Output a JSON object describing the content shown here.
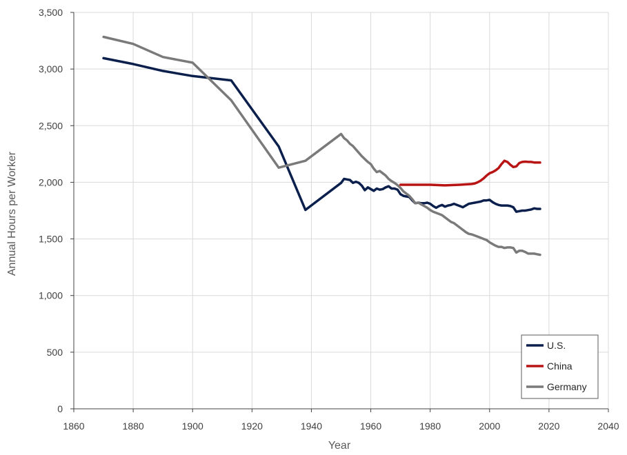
{
  "chart_data": {
    "type": "line",
    "title": "",
    "xlabel": "Year",
    "ylabel": "Annual Hours per Worker",
    "xlim": [
      1860,
      2040
    ],
    "ylim": [
      0,
      3500
    ],
    "xticks": [
      1860,
      1880,
      1900,
      1920,
      1940,
      1960,
      1980,
      2000,
      2020,
      2040
    ],
    "yticks": [
      0,
      500,
      1000,
      1500,
      2000,
      2500,
      3000,
      3500
    ],
    "ytick_labels": [
      "0",
      "500",
      "1,000",
      "1,500",
      "2,000",
      "2,500",
      "3,000",
      "3,500"
    ],
    "grid": true,
    "legend_position": "bottom-right",
    "series": [
      {
        "name": "U.S.",
        "color": "#0b1f4d",
        "points": [
          [
            1870,
            3096
          ],
          [
            1880,
            3044
          ],
          [
            1890,
            2983
          ],
          [
            1900,
            2938
          ],
          [
            1913,
            2900
          ],
          [
            1929,
            2316
          ],
          [
            1938,
            1756
          ],
          [
            1950,
            1995
          ],
          [
            1951,
            2030
          ],
          [
            1952,
            2025
          ],
          [
            1953,
            2020
          ],
          [
            1954,
            1995
          ],
          [
            1955,
            2005
          ],
          [
            1956,
            1995
          ],
          [
            1957,
            1970
          ],
          [
            1958,
            1930
          ],
          [
            1959,
            1955
          ],
          [
            1960,
            1940
          ],
          [
            1961,
            1925
          ],
          [
            1962,
            1945
          ],
          [
            1963,
            1935
          ],
          [
            1964,
            1940
          ],
          [
            1965,
            1955
          ],
          [
            1966,
            1965
          ],
          [
            1967,
            1945
          ],
          [
            1968,
            1945
          ],
          [
            1969,
            1935
          ],
          [
            1970,
            1895
          ],
          [
            1971,
            1880
          ],
          [
            1972,
            1875
          ],
          [
            1973,
            1870
          ],
          [
            1974,
            1840
          ],
          [
            1975,
            1815
          ],
          [
            1976,
            1820
          ],
          [
            1977,
            1815
          ],
          [
            1978,
            1815
          ],
          [
            1979,
            1820
          ],
          [
            1980,
            1810
          ],
          [
            1981,
            1790
          ],
          [
            1982,
            1775
          ],
          [
            1983,
            1790
          ],
          [
            1984,
            1800
          ],
          [
            1985,
            1785
          ],
          [
            1986,
            1795
          ],
          [
            1987,
            1800
          ],
          [
            1988,
            1810
          ],
          [
            1989,
            1800
          ],
          [
            1990,
            1790
          ],
          [
            1991,
            1780
          ],
          [
            1992,
            1795
          ],
          [
            1993,
            1810
          ],
          [
            1994,
            1815
          ],
          [
            1995,
            1820
          ],
          [
            1996,
            1825
          ],
          [
            1997,
            1830
          ],
          [
            1998,
            1840
          ],
          [
            1999,
            1840
          ],
          [
            2000,
            1845
          ],
          [
            2001,
            1825
          ],
          [
            2002,
            1810
          ],
          [
            2003,
            1800
          ],
          [
            2004,
            1795
          ],
          [
            2005,
            1795
          ],
          [
            2006,
            1795
          ],
          [
            2007,
            1790
          ],
          [
            2008,
            1780
          ],
          [
            2009,
            1740
          ],
          [
            2010,
            1745
          ],
          [
            2011,
            1750
          ],
          [
            2012,
            1750
          ],
          [
            2013,
            1755
          ],
          [
            2014,
            1760
          ],
          [
            2015,
            1770
          ],
          [
            2016,
            1765
          ],
          [
            2017,
            1765
          ]
        ]
      },
      {
        "name": "China",
        "color": "#b81414",
        "points": [
          [
            1970,
            1978
          ],
          [
            1975,
            1978
          ],
          [
            1980,
            1978
          ],
          [
            1985,
            1973
          ],
          [
            1990,
            1978
          ],
          [
            1994,
            1985
          ],
          [
            1995,
            1990
          ],
          [
            1996,
            2000
          ],
          [
            1997,
            2015
          ],
          [
            1998,
            2035
          ],
          [
            1999,
            2060
          ],
          [
            2000,
            2080
          ],
          [
            2001,
            2090
          ],
          [
            2002,
            2105
          ],
          [
            2003,
            2125
          ],
          [
            2004,
            2160
          ],
          [
            2005,
            2190
          ],
          [
            2006,
            2180
          ],
          [
            2007,
            2155
          ],
          [
            2008,
            2135
          ],
          [
            2009,
            2140
          ],
          [
            2010,
            2170
          ],
          [
            2011,
            2180
          ],
          [
            2012,
            2182
          ],
          [
            2013,
            2180
          ],
          [
            2014,
            2180
          ],
          [
            2015,
            2175
          ],
          [
            2016,
            2175
          ],
          [
            2017,
            2175
          ]
        ]
      },
      {
        "name": "Germany",
        "color": "#7a7a7a",
        "points": [
          [
            1870,
            3284
          ],
          [
            1880,
            3222
          ],
          [
            1890,
            3106
          ],
          [
            1900,
            3056
          ],
          [
            1913,
            2724
          ],
          [
            1929,
            2129
          ],
          [
            1938,
            2190
          ],
          [
            1950,
            2427
          ],
          [
            1951,
            2390
          ],
          [
            1952,
            2370
          ],
          [
            1953,
            2340
          ],
          [
            1954,
            2320
          ],
          [
            1955,
            2290
          ],
          [
            1956,
            2260
          ],
          [
            1957,
            2230
          ],
          [
            1958,
            2205
          ],
          [
            1959,
            2180
          ],
          [
            1960,
            2160
          ],
          [
            1961,
            2120
          ],
          [
            1962,
            2090
          ],
          [
            1963,
            2100
          ],
          [
            1964,
            2080
          ],
          [
            1965,
            2060
          ],
          [
            1966,
            2030
          ],
          [
            1967,
            2010
          ],
          [
            1968,
            1995
          ],
          [
            1969,
            1975
          ],
          [
            1970,
            1950
          ],
          [
            1971,
            1920
          ],
          [
            1972,
            1900
          ],
          [
            1973,
            1880
          ],
          [
            1974,
            1850
          ],
          [
            1975,
            1815
          ],
          [
            1976,
            1820
          ],
          [
            1977,
            1805
          ],
          [
            1978,
            1790
          ],
          [
            1979,
            1775
          ],
          [
            1980,
            1755
          ],
          [
            1981,
            1740
          ],
          [
            1982,
            1730
          ],
          [
            1983,
            1720
          ],
          [
            1984,
            1710
          ],
          [
            1985,
            1690
          ],
          [
            1986,
            1670
          ],
          [
            1987,
            1650
          ],
          [
            1988,
            1640
          ],
          [
            1989,
            1620
          ],
          [
            1990,
            1600
          ],
          [
            1991,
            1580
          ],
          [
            1992,
            1560
          ],
          [
            1993,
            1545
          ],
          [
            1994,
            1540
          ],
          [
            1995,
            1530
          ],
          [
            1996,
            1520
          ],
          [
            1997,
            1510
          ],
          [
            1998,
            1500
          ],
          [
            1999,
            1490
          ],
          [
            2000,
            1470
          ],
          [
            2001,
            1455
          ],
          [
            2002,
            1440
          ],
          [
            2003,
            1430
          ],
          [
            2004,
            1430
          ],
          [
            2005,
            1420
          ],
          [
            2006,
            1425
          ],
          [
            2007,
            1425
          ],
          [
            2008,
            1420
          ],
          [
            2009,
            1380
          ],
          [
            2010,
            1395
          ],
          [
            2011,
            1395
          ],
          [
            2012,
            1385
          ],
          [
            2013,
            1370
          ],
          [
            2014,
            1370
          ],
          [
            2015,
            1370
          ],
          [
            2016,
            1365
          ],
          [
            2017,
            1360
          ]
        ]
      }
    ]
  }
}
